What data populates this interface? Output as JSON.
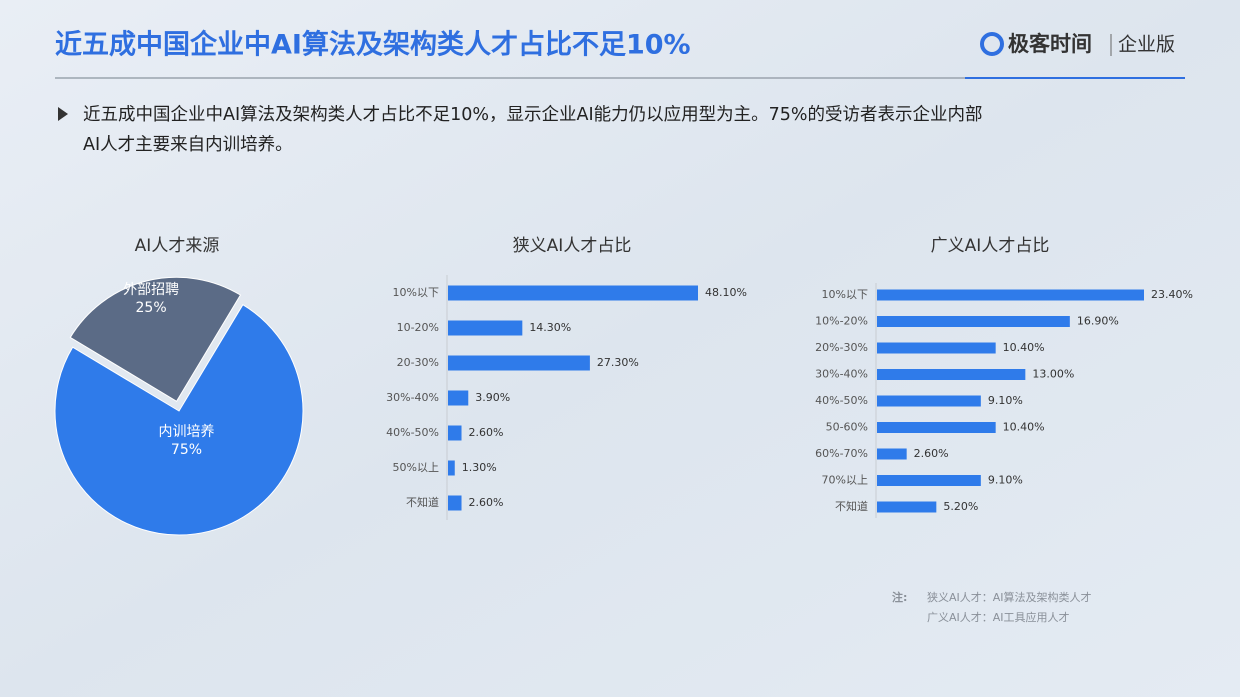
{
  "header": {
    "title": "近五成中国企业中AI算法及架构类人才占比不足10%",
    "logo": "极客时间",
    "edition": "企业版"
  },
  "bullet_lines": [
    "近五成中国企业中AI算法及架构类人才占比不足10%，显示企业AI能力仍以应用型为主。75%的受访者表示企业内部",
    "AI人才主要来自内训培养。"
  ],
  "notes": {
    "label": "注:",
    "lines": [
      "狭义AI人才：AI算法及架构类人才",
      "广义AI人才：AI工具应用人才"
    ]
  },
  "chart_data": [
    {
      "type": "pie",
      "title": "AI人才来源",
      "categories": [
        "外部招聘",
        "内训培养"
      ],
      "values": [
        25,
        75
      ],
      "value_labels": [
        "25%",
        "75%"
      ],
      "colors": [
        "#5b6b86",
        "#2f7bea"
      ]
    },
    {
      "type": "bar",
      "title": "狭义AI人才占比",
      "categories": [
        "10%以下",
        "10-20%",
        "20-30%",
        "30%-40%",
        "40%-50%",
        "50%以上",
        "不知道"
      ],
      "values": [
        48.1,
        14.3,
        27.3,
        3.9,
        2.6,
        1.3,
        2.6
      ],
      "value_labels": [
        "48.10%",
        "14.30%",
        "27.30%",
        "3.90%",
        "2.60%",
        "1.30%",
        "2.60%"
      ],
      "color": "#2f7bea"
    },
    {
      "type": "bar",
      "title": "广义AI人才占比",
      "categories": [
        "10%以下",
        "10%-20%",
        "20%-30%",
        "30%-40%",
        "40%-50%",
        "50-60%",
        "60%-70%",
        "70%以上",
        "不知道"
      ],
      "values": [
        23.4,
        16.9,
        10.4,
        13.0,
        9.1,
        10.4,
        2.6,
        9.1,
        5.2
      ],
      "value_labels": [
        "23.40%",
        "16.90%",
        "10.40%",
        "13.00%",
        "9.10%",
        "10.40%",
        "2.60%",
        "9.10%",
        "5.20%"
      ],
      "color": "#2f7bea"
    }
  ]
}
